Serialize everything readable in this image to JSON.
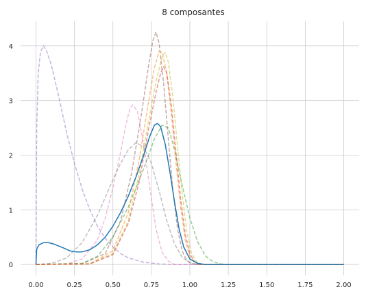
{
  "chart_data": {
    "type": "line",
    "title": "8 composantes",
    "xlabel": "",
    "ylabel": "",
    "xlim": [
      -0.1,
      2.1
    ],
    "ylim": [
      -0.2,
      4.45
    ],
    "x_ticks": [
      0.0,
      0.25,
      0.5,
      0.75,
      1.0,
      1.25,
      1.5,
      1.75,
      2.0
    ],
    "x_tick_labels": [
      "0.00",
      "0.25",
      "0.50",
      "0.75",
      "1.00",
      "1.25",
      "1.50",
      "1.75",
      "2.00"
    ],
    "y_ticks": [
      0,
      1,
      2,
      3,
      4
    ],
    "y_tick_labels": [
      "0",
      "1",
      "2",
      "3",
      "4"
    ],
    "grid": true,
    "x_range": [
      0.0,
      2.0
    ],
    "mixture": {
      "style": "solid",
      "color": "#1f77b4",
      "points": [
        [
          0.0,
          0.0
        ],
        [
          0.005,
          0.28
        ],
        [
          0.02,
          0.36
        ],
        [
          0.05,
          0.4
        ],
        [
          0.08,
          0.4
        ],
        [
          0.12,
          0.37
        ],
        [
          0.18,
          0.3
        ],
        [
          0.22,
          0.25
        ],
        [
          0.26,
          0.23
        ],
        [
          0.3,
          0.23
        ],
        [
          0.35,
          0.27
        ],
        [
          0.4,
          0.36
        ],
        [
          0.45,
          0.5
        ],
        [
          0.5,
          0.7
        ],
        [
          0.55,
          0.95
        ],
        [
          0.6,
          1.25
        ],
        [
          0.65,
          1.6
        ],
        [
          0.7,
          2.0
        ],
        [
          0.74,
          2.35
        ],
        [
          0.77,
          2.55
        ],
        [
          0.79,
          2.58
        ],
        [
          0.81,
          2.52
        ],
        [
          0.84,
          2.2
        ],
        [
          0.87,
          1.7
        ],
        [
          0.9,
          1.15
        ],
        [
          0.93,
          0.65
        ],
        [
          0.96,
          0.32
        ],
        [
          1.0,
          0.1
        ],
        [
          1.05,
          0.02
        ],
        [
          1.1,
          0.0
        ],
        [
          2.0,
          0.0
        ]
      ]
    },
    "components": [
      {
        "style": "dashed",
        "color": "#9467bd",
        "points": [
          [
            0.0,
            0.0
          ],
          [
            0.005,
            2.5
          ],
          [
            0.015,
            3.5
          ],
          [
            0.03,
            3.9
          ],
          [
            0.05,
            4.0
          ],
          [
            0.07,
            3.9
          ],
          [
            0.1,
            3.65
          ],
          [
            0.15,
            3.05
          ],
          [
            0.2,
            2.4
          ],
          [
            0.25,
            1.85
          ],
          [
            0.3,
            1.38
          ],
          [
            0.35,
            1.0
          ],
          [
            0.4,
            0.7
          ],
          [
            0.45,
            0.48
          ],
          [
            0.5,
            0.32
          ],
          [
            0.55,
            0.2
          ],
          [
            0.6,
            0.12
          ],
          [
            0.7,
            0.04
          ],
          [
            0.8,
            0.01
          ],
          [
            0.9,
            0.0
          ],
          [
            2.0,
            0.0
          ]
        ]
      },
      {
        "style": "dashed",
        "color": "#e377c2",
        "points": [
          [
            0.0,
            0.0
          ],
          [
            0.2,
            0.01
          ],
          [
            0.3,
            0.1
          ],
          [
            0.4,
            0.45
          ],
          [
            0.45,
            0.85
          ],
          [
            0.5,
            1.4
          ],
          [
            0.55,
            2.05
          ],
          [
            0.58,
            2.5
          ],
          [
            0.61,
            2.85
          ],
          [
            0.63,
            2.92
          ],
          [
            0.66,
            2.8
          ],
          [
            0.7,
            2.2
          ],
          [
            0.74,
            1.4
          ],
          [
            0.78,
            0.65
          ],
          [
            0.82,
            0.22
          ],
          [
            0.86,
            0.06
          ],
          [
            0.9,
            0.0
          ],
          [
            2.0,
            0.0
          ]
        ]
      },
      {
        "style": "dashed",
        "color": "#7f7f7f",
        "points": [
          [
            0.0,
            0.0
          ],
          [
            0.1,
            0.02
          ],
          [
            0.2,
            0.12
          ],
          [
            0.3,
            0.4
          ],
          [
            0.4,
            0.9
          ],
          [
            0.5,
            1.55
          ],
          [
            0.55,
            1.85
          ],
          [
            0.6,
            2.1
          ],
          [
            0.65,
            2.23
          ],
          [
            0.7,
            2.15
          ],
          [
            0.75,
            1.85
          ],
          [
            0.8,
            1.35
          ],
          [
            0.85,
            0.8
          ],
          [
            0.9,
            0.38
          ],
          [
            0.95,
            0.13
          ],
          [
            1.0,
            0.03
          ],
          [
            1.05,
            0.0
          ],
          [
            2.0,
            0.0
          ]
        ]
      },
      {
        "style": "dashed",
        "color": "#2ca02c",
        "points": [
          [
            0.0,
            0.0
          ],
          [
            0.3,
            0.02
          ],
          [
            0.4,
            0.15
          ],
          [
            0.5,
            0.5
          ],
          [
            0.6,
            1.05
          ],
          [
            0.7,
            1.75
          ],
          [
            0.77,
            2.3
          ],
          [
            0.82,
            2.55
          ],
          [
            0.86,
            2.5
          ],
          [
            0.9,
            2.1
          ],
          [
            0.95,
            1.45
          ],
          [
            1.0,
            0.85
          ],
          [
            1.05,
            0.42
          ],
          [
            1.1,
            0.16
          ],
          [
            1.15,
            0.05
          ],
          [
            1.2,
            0.01
          ],
          [
            1.25,
            0.0
          ],
          [
            2.0,
            0.0
          ]
        ]
      },
      {
        "style": "dashed",
        "color": "#8c564b",
        "points": [
          [
            0.0,
            0.0
          ],
          [
            0.3,
            0.01
          ],
          [
            0.45,
            0.2
          ],
          [
            0.55,
            0.8
          ],
          [
            0.62,
            1.65
          ],
          [
            0.68,
            2.65
          ],
          [
            0.73,
            3.6
          ],
          [
            0.76,
            4.1
          ],
          [
            0.78,
            4.25
          ],
          [
            0.8,
            4.05
          ],
          [
            0.83,
            3.3
          ],
          [
            0.86,
            2.3
          ],
          [
            0.89,
            1.35
          ],
          [
            0.92,
            0.65
          ],
          [
            0.95,
            0.25
          ],
          [
            0.98,
            0.07
          ],
          [
            1.02,
            0.01
          ],
          [
            1.05,
            0.0
          ],
          [
            2.0,
            0.0
          ]
        ]
      },
      {
        "style": "dashed",
        "color": "#ff7f0e",
        "points": [
          [
            0.0,
            0.0
          ],
          [
            0.35,
            0.01
          ],
          [
            0.5,
            0.25
          ],
          [
            0.6,
            0.95
          ],
          [
            0.67,
            1.9
          ],
          [
            0.73,
            2.95
          ],
          [
            0.77,
            3.6
          ],
          [
            0.8,
            3.9
          ],
          [
            0.82,
            3.88
          ],
          [
            0.85,
            3.5
          ],
          [
            0.88,
            2.75
          ],
          [
            0.91,
            1.85
          ],
          [
            0.94,
            1.05
          ],
          [
            0.97,
            0.45
          ],
          [
            1.0,
            0.15
          ],
          [
            1.03,
            0.04
          ],
          [
            1.06,
            0.0
          ],
          [
            2.0,
            0.0
          ]
        ]
      },
      {
        "style": "dashed",
        "color": "#bcbd22",
        "points": [
          [
            0.0,
            0.0
          ],
          [
            0.35,
            0.01
          ],
          [
            0.5,
            0.2
          ],
          [
            0.6,
            0.8
          ],
          [
            0.67,
            1.65
          ],
          [
            0.73,
            2.6
          ],
          [
            0.78,
            3.35
          ],
          [
            0.82,
            3.8
          ],
          [
            0.84,
            3.88
          ],
          [
            0.86,
            3.7
          ],
          [
            0.89,
            3.05
          ],
          [
            0.92,
            2.15
          ],
          [
            0.95,
            1.3
          ],
          [
            0.98,
            0.6
          ],
          [
            1.01,
            0.22
          ],
          [
            1.04,
            0.06
          ],
          [
            1.08,
            0.0
          ],
          [
            2.0,
            0.0
          ]
        ]
      },
      {
        "style": "dashed",
        "color": "#d62728",
        "points": [
          [
            0.0,
            0.0
          ],
          [
            0.35,
            0.01
          ],
          [
            0.5,
            0.18
          ],
          [
            0.6,
            0.75
          ],
          [
            0.67,
            1.5
          ],
          [
            0.73,
            2.45
          ],
          [
            0.78,
            3.15
          ],
          [
            0.81,
            3.5
          ],
          [
            0.83,
            3.62
          ],
          [
            0.85,
            3.5
          ],
          [
            0.88,
            2.9
          ],
          [
            0.91,
            2.05
          ],
          [
            0.94,
            1.2
          ],
          [
            0.97,
            0.55
          ],
          [
            1.0,
            0.2
          ],
          [
            1.03,
            0.05
          ],
          [
            1.07,
            0.0
          ],
          [
            2.0,
            0.0
          ]
        ]
      }
    ]
  }
}
